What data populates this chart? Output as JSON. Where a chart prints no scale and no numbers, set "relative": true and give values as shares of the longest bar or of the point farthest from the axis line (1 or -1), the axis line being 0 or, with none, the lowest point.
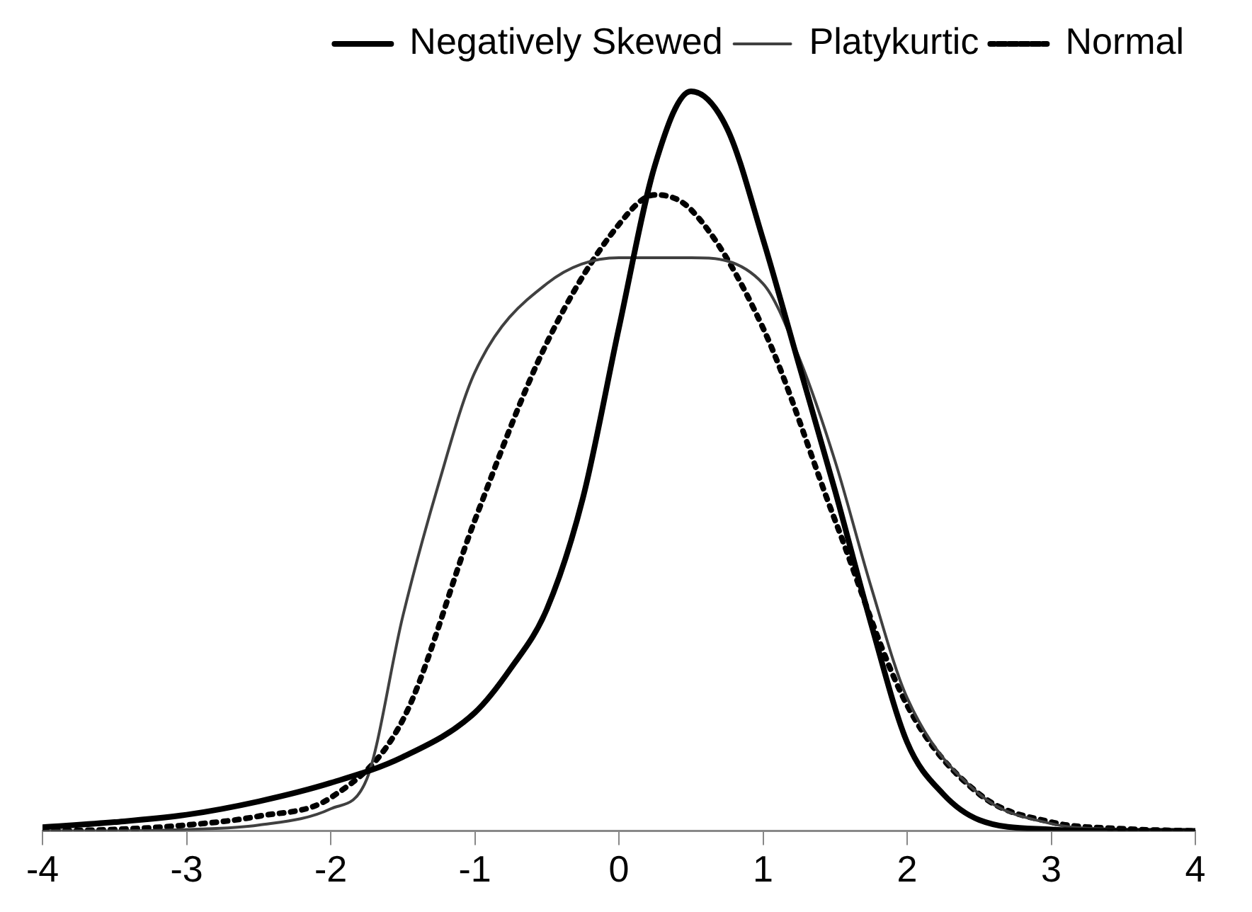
{
  "chart_data": {
    "type": "line",
    "relative": true,
    "xlim": [
      -4,
      4
    ],
    "xticks": [
      -4,
      -3,
      -2,
      -1,
      0,
      1,
      2,
      3,
      4
    ],
    "grid": false,
    "legend": "top right",
    "marker": "none",
    "series": [
      {
        "name": "Negatively Skewed",
        "color": "#000000",
        "line_style": "solid",
        "x": [
          -4,
          -3.5,
          -3,
          -2.5,
          -2,
          -1.5,
          -1,
          -0.75,
          -0.5,
          -0.25,
          0,
          0.25,
          0.5,
          0.75,
          1,
          1.25,
          1.5,
          1.75,
          2,
          2.25,
          2.5,
          3,
          3.5,
          4
        ],
        "values": [
          0.005,
          0.012,
          0.022,
          0.04,
          0.065,
          0.1,
          0.16,
          0.22,
          0.3,
          0.45,
          0.68,
          0.9,
          1,
          0.95,
          0.8,
          0.63,
          0.46,
          0.28,
          0.12,
          0.05,
          0.015,
          0.002,
          0,
          0
        ]
      },
      {
        "name": "Platykurtic",
        "color": "#404040",
        "line_style": "solid",
        "x": [
          -4,
          -3.5,
          -3,
          -2.5,
          -2,
          -1.75,
          -1.5,
          -1.25,
          -1,
          -0.5,
          0,
          0.5,
          1,
          1.25,
          1.5,
          1.75,
          2,
          2.5,
          3,
          3.5,
          4
        ],
        "values": [
          0,
          0,
          0.002,
          0.008,
          0.03,
          0.07,
          0.29,
          0.47,
          0.62,
          0.74,
          0.775,
          0.775,
          0.74,
          0.64,
          0.5,
          0.33,
          0.18,
          0.05,
          0.01,
          0.002,
          0
        ]
      },
      {
        "name": "Normal",
        "color": "#000000",
        "line_style": "dotted",
        "x": [
          -4,
          -3.5,
          -3,
          -2.5,
          -2,
          -1.5,
          -1,
          -0.5,
          0,
          0.25,
          0.5,
          1,
          1.5,
          2,
          2.5,
          3,
          3.5,
          4
        ],
        "values": [
          0,
          0.002,
          0.008,
          0.02,
          0.045,
          0.15,
          0.42,
          0.66,
          0.82,
          0.86,
          0.84,
          0.68,
          0.42,
          0.17,
          0.05,
          0.012,
          0.003,
          0
        ]
      }
    ]
  }
}
